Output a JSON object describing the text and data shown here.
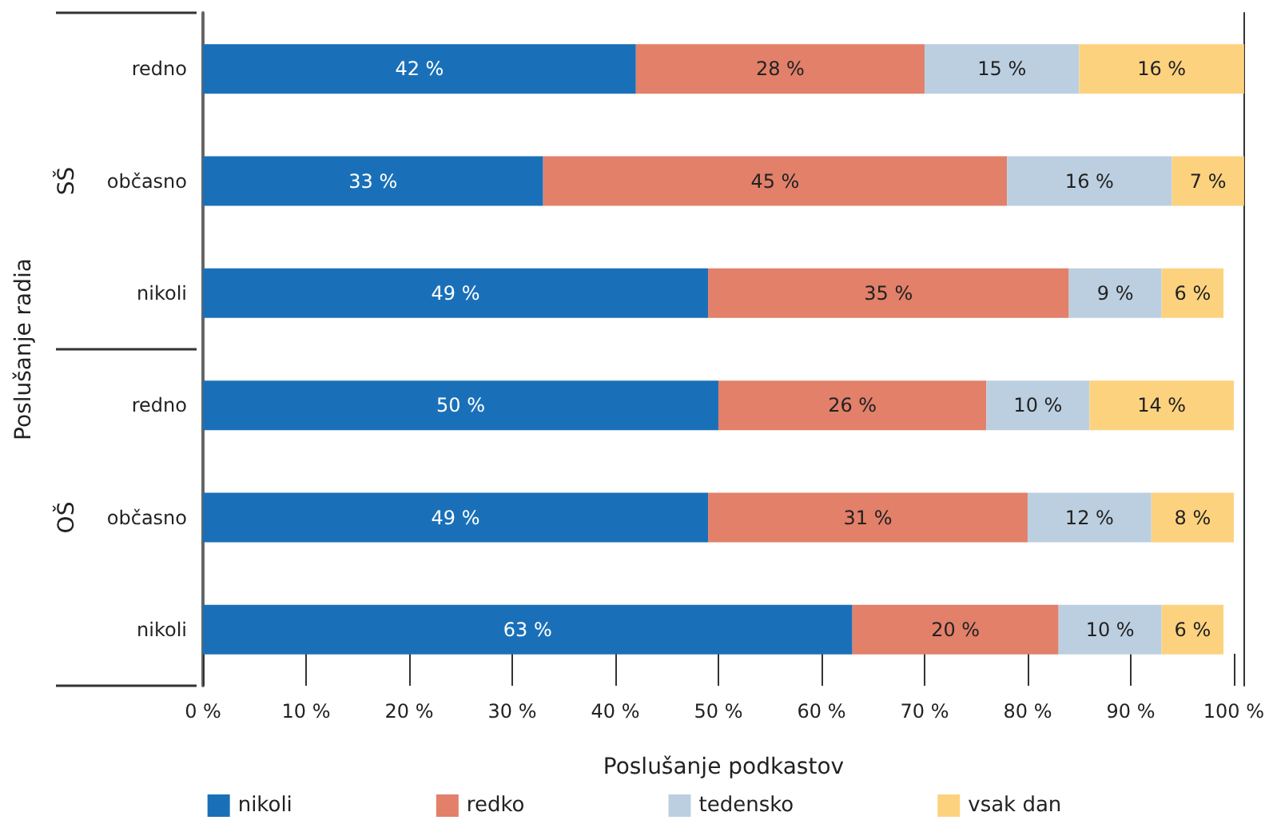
{
  "chart_data": {
    "type": "bar",
    "orientation": "horizontal",
    "stacked": true,
    "xlabel": "Poslušanje podkastov",
    "ylabel": "Poslušanje radia",
    "categories": [
      "redno",
      "občasno",
      "nikoli",
      "redno",
      "občasno",
      "nikoli"
    ],
    "annotations": [
      "SŠ",
      "OŠ"
    ],
    "series": [
      {
        "name": "nikoli",
        "color": "#1a70b8",
        "values": [
          42,
          33,
          49,
          50,
          49,
          63
        ],
        "value_labels": [
          "42 %",
          "33 %",
          "49 %",
          "50 %",
          "49 %",
          "63 %"
        ]
      },
      {
        "name": "redko",
        "color": "#e2806a",
        "values": [
          28,
          45,
          35,
          26,
          31,
          20
        ],
        "value_labels": [
          "28 %",
          "45 %",
          "35 %",
          "26 %",
          "31 %",
          "20 %"
        ]
      },
      {
        "name": "tedensko",
        "color": "#bccfe0",
        "values": [
          15,
          16,
          9,
          10,
          12,
          10
        ],
        "value_labels": [
          "15 %",
          "16 %",
          "9 %",
          "10 %",
          "12 %",
          "10 %"
        ]
      },
      {
        "name": "vsak dan",
        "color": "#fdd27f",
        "values": [
          16,
          7,
          6,
          14,
          8,
          6
        ],
        "value_labels": [
          "16 %",
          "7 %",
          "6 %",
          "14 %",
          "8 %",
          "6 %"
        ]
      }
    ],
    "xlim": [
      0,
      101
    ],
    "xticks": [
      {
        "value": 0,
        "label": "0 %"
      },
      {
        "value": 10,
        "label": "10 %"
      },
      {
        "value": 20,
        "label": "20 %"
      },
      {
        "value": 30,
        "label": "30 %"
      },
      {
        "value": 40,
        "label": "40 %"
      },
      {
        "value": 50,
        "label": "50 %"
      },
      {
        "value": 60,
        "label": "60 %"
      },
      {
        "value": 70,
        "label": "70 %"
      },
      {
        "value": 80,
        "label": "80 %"
      },
      {
        "value": 90,
        "label": "90 %"
      },
      {
        "value": 100,
        "label": "100 %"
      }
    ],
    "grid": false,
    "legend": "bottom"
  }
}
